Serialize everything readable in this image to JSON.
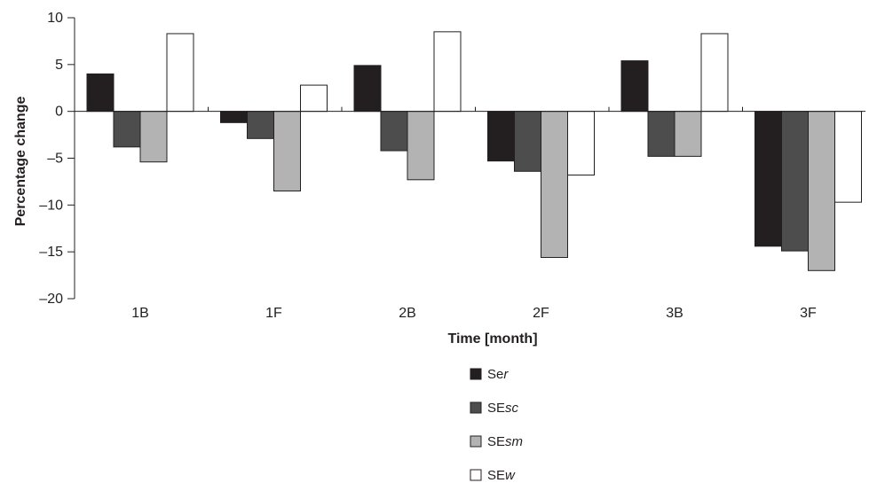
{
  "chart_data": {
    "type": "bar",
    "categories": [
      "1B",
      "1F",
      "2B",
      "2F",
      "3B",
      "3F"
    ],
    "series": [
      {
        "name": "Ser",
        "name_parts": [
          "Se",
          "r"
        ],
        "color": "#231f20",
        "values": [
          4.0,
          -1.2,
          4.9,
          -5.3,
          5.4,
          -14.4
        ]
      },
      {
        "name": "SEsc",
        "name_parts": [
          "SE",
          "sc"
        ],
        "color": "#4d4d4d",
        "values": [
          -3.8,
          -2.9,
          -4.2,
          -6.4,
          -4.8,
          -14.9
        ]
      },
      {
        "name": "SEsm",
        "name_parts": [
          "SE",
          "sm"
        ],
        "color": "#b3b3b3",
        "values": [
          -5.4,
          -8.5,
          -7.3,
          -15.6,
          -4.8,
          -17.0
        ]
      },
      {
        "name": "SEw",
        "name_parts": [
          "SE",
          "w"
        ],
        "color": "#ffffff",
        "values": [
          8.3,
          2.8,
          8.5,
          -6.8,
          8.3,
          -9.7
        ]
      }
    ],
    "ylim": [
      -20,
      10
    ],
    "yticks": [
      10,
      5,
      0,
      -5,
      -10,
      -15,
      -20
    ],
    "ytick_labels": [
      "10",
      "5",
      "0",
      "–5",
      "–10",
      "–15",
      "–20"
    ],
    "xlabel": "Time [month]",
    "ylabel": "Percentage change",
    "grid": false,
    "legend_position": "bottom-center"
  }
}
